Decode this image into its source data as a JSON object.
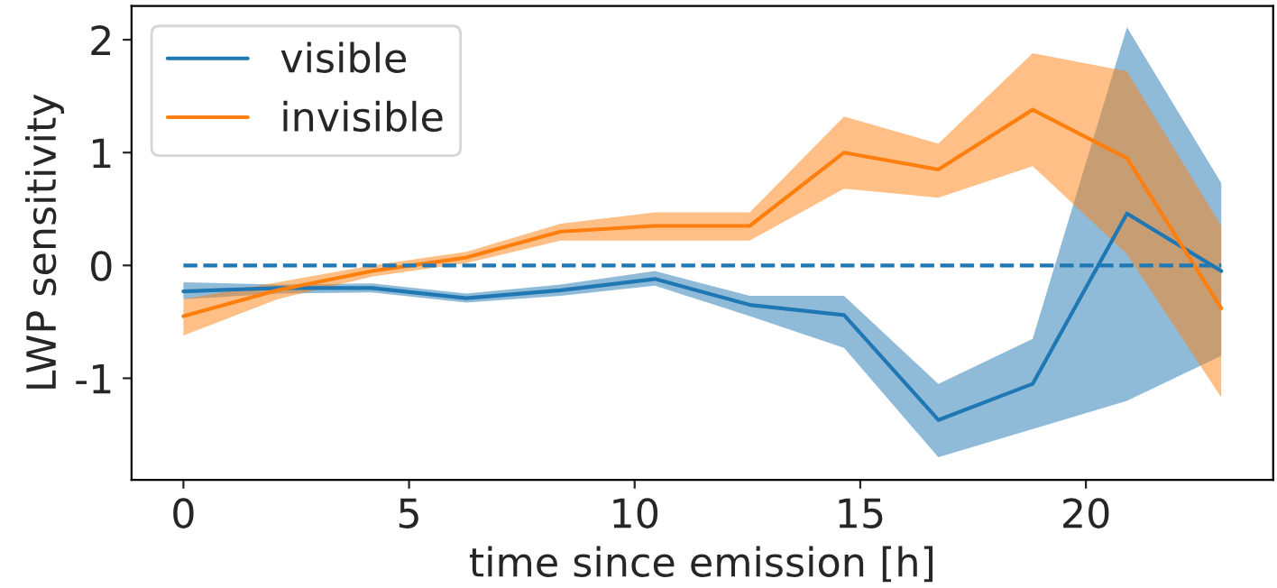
{
  "chart_data": {
    "type": "line",
    "xlabel": "time since emission [h]",
    "ylabel": "LWP sensitivity",
    "x": [
      0,
      2.09,
      4.18,
      6.27,
      8.36,
      10.45,
      12.55,
      14.64,
      16.73,
      18.82,
      20.91,
      23.0
    ],
    "series": [
      {
        "name": "visible",
        "color": "#1f77b4",
        "values": [
          -0.23,
          -0.2,
          -0.2,
          -0.29,
          -0.22,
          -0.12,
          -0.35,
          -0.44,
          -1.37,
          -1.05,
          0.46,
          -0.05
        ],
        "lower": [
          -0.3,
          -0.25,
          -0.24,
          -0.33,
          -0.27,
          -0.18,
          -0.45,
          -0.73,
          -1.7,
          -1.45,
          -1.2,
          -0.8
        ],
        "upper": [
          -0.15,
          -0.17,
          -0.16,
          -0.25,
          -0.17,
          -0.05,
          -0.27,
          -0.27,
          -1.05,
          -0.65,
          2.11,
          0.73
        ]
      },
      {
        "name": "invisible",
        "color": "#ff7f0e",
        "values": [
          -0.45,
          -0.22,
          -0.05,
          0.07,
          0.3,
          0.35,
          0.35,
          1.0,
          0.85,
          1.38,
          0.95,
          -0.38
        ],
        "lower": [
          -0.62,
          -0.3,
          -0.1,
          0.02,
          0.22,
          0.22,
          0.22,
          0.68,
          0.6,
          0.88,
          0.1,
          -1.17
        ],
        "upper": [
          -0.3,
          -0.15,
          0.0,
          0.12,
          0.37,
          0.47,
          0.47,
          1.32,
          1.08,
          1.88,
          1.72,
          0.35
        ]
      }
    ],
    "ref_lines": [
      {
        "axis": "y",
        "value": 0,
        "color": "#1f77b4",
        "line_style": "dashed"
      }
    ],
    "xlim": [
      -1.15,
      24.15
    ],
    "ylim": [
      -1.9,
      2.3
    ],
    "xticks": [
      0,
      5,
      10,
      15,
      20
    ],
    "yticks": [
      -1,
      0,
      1,
      2
    ],
    "grid": false,
    "legend": "top left",
    "marker": "none",
    "line_style": "solid"
  }
}
